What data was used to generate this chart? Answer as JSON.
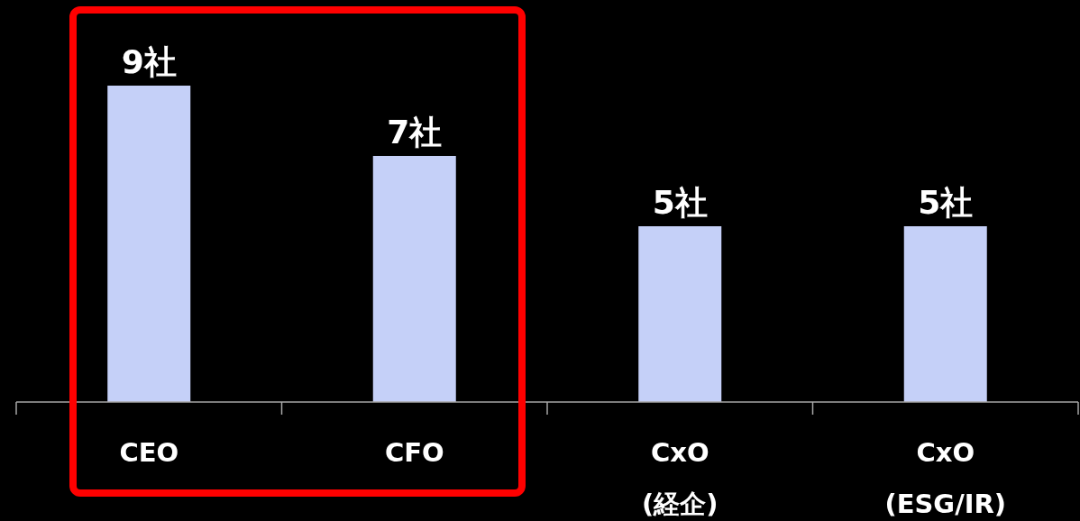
{
  "chart_data": {
    "type": "bar",
    "categories": [
      "CEO",
      "CFO",
      "CxO\n(経企)",
      "CxO\n(ESG/IR)"
    ],
    "values": [
      9,
      7,
      5,
      5
    ],
    "value_labels": [
      "9社",
      "7社",
      "5社",
      "5社"
    ],
    "color": "#c5d0f8"
  }
}
